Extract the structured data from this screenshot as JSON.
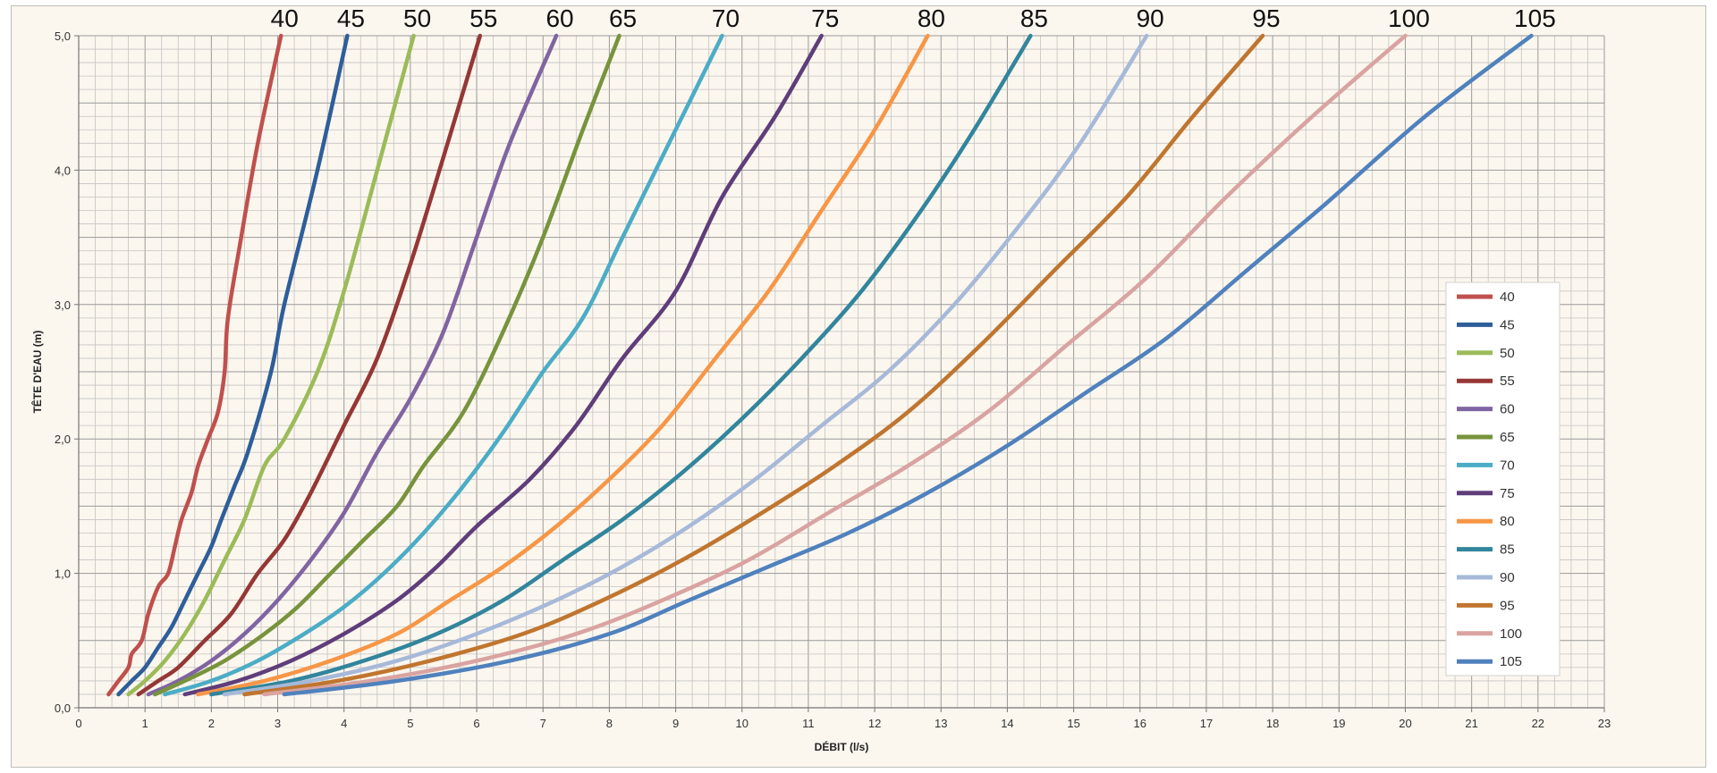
{
  "chart_data": {
    "type": "line",
    "title": "",
    "xlabel": "DÉBIT (l/s)",
    "ylabel": "TÊTE D'EAU (m)",
    "xlim": [
      0,
      23
    ],
    "ylim": [
      0,
      5
    ],
    "x_ticks": [
      "0",
      "1",
      "2",
      "3",
      "4",
      "5",
      "6",
      "7",
      "8",
      "9",
      "10",
      "11",
      "12",
      "13",
      "14",
      "15",
      "16",
      "17",
      "18",
      "19",
      "20",
      "21",
      "22",
      "23"
    ],
    "y_ticks": [
      "0,0",
      "1,0",
      "2,0",
      "3,0",
      "4,0",
      "5,0"
    ],
    "grid": true,
    "legend_position": "right",
    "series": [
      {
        "name": "40",
        "color": "#c0504d",
        "x": [
          0.45,
          0.6,
          0.75,
          0.8,
          0.95,
          1.05,
          1.2,
          1.35,
          1.45,
          1.55,
          1.7,
          1.8,
          1.95,
          2.1,
          2.2,
          2.25,
          2.45,
          2.7,
          3.05
        ],
        "y": [
          0.1,
          0.2,
          0.3,
          0.4,
          0.5,
          0.7,
          0.9,
          1.0,
          1.2,
          1.4,
          1.6,
          1.8,
          2.0,
          2.2,
          2.5,
          2.9,
          3.5,
          4.2,
          5.0
        ]
      },
      {
        "name": "45",
        "color": "#2e5e9a",
        "x": [
          0.6,
          0.8,
          1.0,
          1.2,
          1.4,
          1.6,
          1.8,
          2.0,
          2.15,
          2.35,
          2.55,
          2.9,
          3.1,
          3.6,
          4.05
        ],
        "y": [
          0.1,
          0.2,
          0.3,
          0.45,
          0.6,
          0.8,
          1.0,
          1.2,
          1.4,
          1.65,
          1.9,
          2.5,
          3.0,
          4.0,
          5.0
        ]
      },
      {
        "name": "50",
        "color": "#9bbb59",
        "x": [
          0.75,
          1.0,
          1.3,
          1.6,
          1.9,
          2.2,
          2.5,
          2.8,
          3.1,
          3.6,
          4.0,
          4.5,
          5.05
        ],
        "y": [
          0.1,
          0.2,
          0.35,
          0.55,
          0.8,
          1.1,
          1.4,
          1.8,
          2.0,
          2.5,
          3.1,
          4.0,
          5.0
        ]
      },
      {
        "name": "55",
        "color": "#953735",
        "x": [
          0.9,
          1.2,
          1.5,
          1.9,
          2.3,
          2.7,
          3.1,
          3.5,
          4.0,
          4.5,
          5.0,
          5.5,
          6.05
        ],
        "y": [
          0.1,
          0.2,
          0.3,
          0.5,
          0.7,
          1.0,
          1.25,
          1.6,
          2.1,
          2.6,
          3.3,
          4.1,
          5.0
        ]
      },
      {
        "name": "60",
        "color": "#8064a2",
        "x": [
          1.05,
          1.5,
          2.0,
          2.5,
          3.0,
          3.5,
          4.0,
          4.5,
          5.0,
          5.5,
          6.0,
          6.5,
          7.2
        ],
        "y": [
          0.1,
          0.2,
          0.35,
          0.55,
          0.8,
          1.1,
          1.45,
          1.9,
          2.3,
          2.8,
          3.5,
          4.2,
          5.0
        ]
      },
      {
        "name": "65",
        "color": "#77933c",
        "x": [
          1.15,
          1.6,
          2.2,
          2.8,
          3.3,
          3.8,
          4.3,
          4.8,
          5.2,
          5.8,
          6.4,
          7.0,
          7.6,
          8.15
        ],
        "y": [
          0.1,
          0.2,
          0.35,
          0.55,
          0.75,
          1.0,
          1.25,
          1.5,
          1.8,
          2.2,
          2.8,
          3.5,
          4.3,
          5.0
        ]
      },
      {
        "name": "70",
        "color": "#4bacc6",
        "x": [
          1.3,
          2.0,
          2.7,
          3.4,
          4.0,
          4.6,
          5.2,
          5.8,
          6.4,
          7.0,
          7.6,
          8.2,
          8.9,
          9.7
        ],
        "y": [
          0.1,
          0.2,
          0.35,
          0.55,
          0.75,
          1.0,
          1.3,
          1.65,
          2.05,
          2.5,
          2.9,
          3.5,
          4.2,
          5.0
        ]
      },
      {
        "name": "75",
        "color": "#5f3d7a",
        "x": [
          1.6,
          2.4,
          3.2,
          4.0,
          4.8,
          5.4,
          6.0,
          6.8,
          7.5,
          8.2,
          9.0,
          9.7,
          10.5,
          11.2
        ],
        "y": [
          0.1,
          0.2,
          0.35,
          0.55,
          0.8,
          1.05,
          1.35,
          1.7,
          2.1,
          2.6,
          3.1,
          3.8,
          4.4,
          5.0
        ]
      },
      {
        "name": "80",
        "color": "#f79646",
        "x": [
          1.8,
          2.8,
          3.8,
          4.8,
          5.6,
          6.4,
          7.2,
          8.0,
          8.8,
          9.6,
          10.4,
          11.2,
          12.0,
          12.8
        ],
        "y": [
          0.1,
          0.2,
          0.35,
          0.55,
          0.8,
          1.05,
          1.35,
          1.7,
          2.1,
          2.6,
          3.1,
          3.7,
          4.3,
          5.0
        ]
      },
      {
        "name": "85",
        "color": "#31859c",
        "x": [
          2.0,
          3.2,
          4.3,
          5.4,
          6.4,
          7.3,
          8.2,
          9.1,
          10.0,
          10.9,
          11.8,
          12.7,
          13.5,
          14.35
        ],
        "y": [
          0.1,
          0.2,
          0.35,
          0.55,
          0.8,
          1.1,
          1.4,
          1.75,
          2.15,
          2.6,
          3.1,
          3.7,
          4.3,
          5.0
        ]
      },
      {
        "name": "90",
        "color": "#a6b9d9",
        "x": [
          2.2,
          3.5,
          4.8,
          6.0,
          7.2,
          8.2,
          9.2,
          10.2,
          11.2,
          12.2,
          13.2,
          14.2,
          15.1,
          16.1
        ],
        "y": [
          0.1,
          0.2,
          0.35,
          0.55,
          0.8,
          1.05,
          1.35,
          1.7,
          2.1,
          2.5,
          3.0,
          3.6,
          4.2,
          5.0
        ]
      },
      {
        "name": "95",
        "color": "#c0752f",
        "x": [
          2.5,
          3.9,
          5.3,
          6.7,
          7.9,
          9.1,
          10.3,
          11.4,
          12.5,
          13.6,
          14.7,
          15.8,
          16.8,
          17.85
        ],
        "y": [
          0.1,
          0.2,
          0.35,
          0.55,
          0.8,
          1.1,
          1.45,
          1.8,
          2.2,
          2.7,
          3.25,
          3.8,
          4.4,
          5.0
        ]
      },
      {
        "name": "100",
        "color": "#d9a3a1",
        "x": [
          2.8,
          4.4,
          6.0,
          7.5,
          8.8,
          10.1,
          11.3,
          12.5,
          13.7,
          14.9,
          16.1,
          17.3,
          18.6,
          20.0
        ],
        "y": [
          0.1,
          0.2,
          0.35,
          0.55,
          0.8,
          1.1,
          1.45,
          1.8,
          2.2,
          2.7,
          3.2,
          3.8,
          4.4,
          5.0
        ]
      },
      {
        "name": "105",
        "color": "#4f81bd",
        "x": [
          3.1,
          4.8,
          6.5,
          8.0,
          9.2,
          10.4,
          11.6,
          12.8,
          14.0,
          15.2,
          16.4,
          17.6,
          18.8,
          20.3,
          21.9
        ],
        "y": [
          0.1,
          0.2,
          0.35,
          0.55,
          0.8,
          1.05,
          1.3,
          1.6,
          1.95,
          2.35,
          2.75,
          3.25,
          3.75,
          4.4,
          5.0
        ]
      }
    ]
  }
}
